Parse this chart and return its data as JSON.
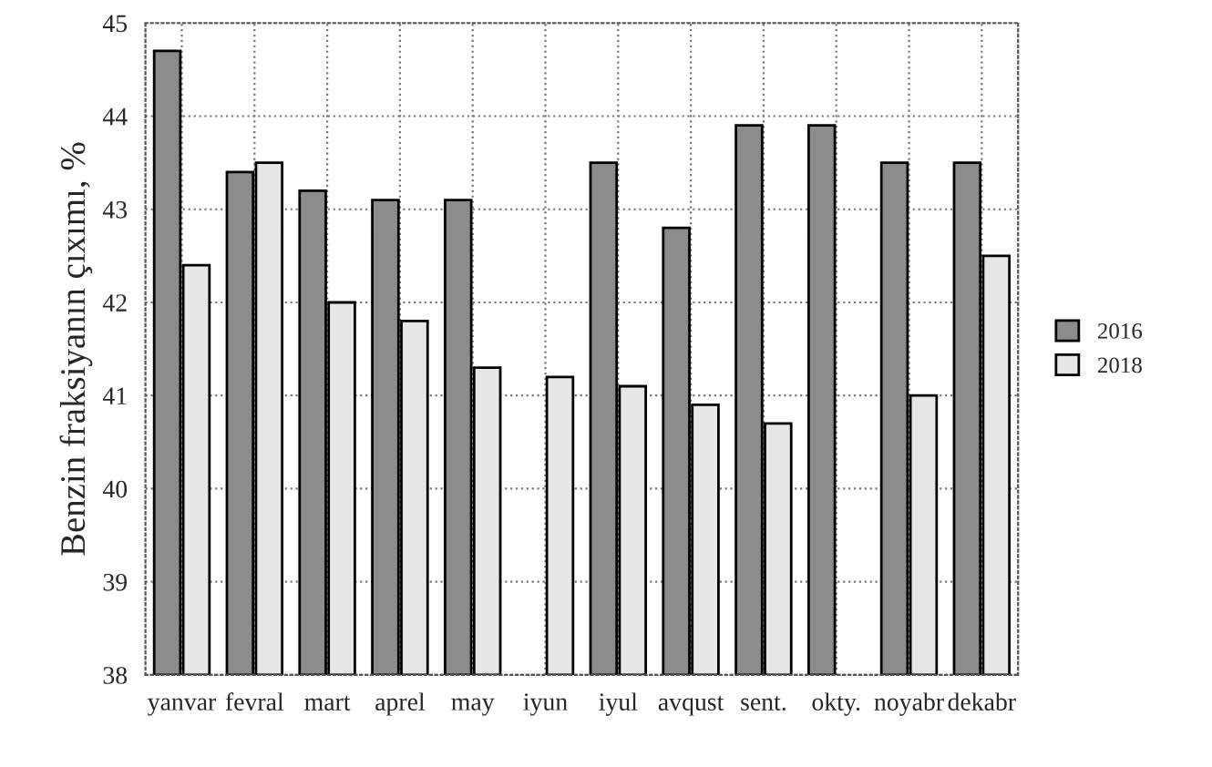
{
  "chart_data": {
    "type": "bar",
    "ylabel": "Benzin fraksiyanın çıxımı, %",
    "categories": [
      "yanvar",
      "fevral",
      "mart",
      "aprel",
      "may",
      "iyun",
      "iyul",
      "avqust",
      "sent.",
      "okty.",
      "noyabr",
      "dekabr"
    ],
    "series": [
      {
        "name": "2016",
        "color": "#8c8c8c",
        "values": [
          44.7,
          43.4,
          43.2,
          43.1,
          43.1,
          null,
          43.5,
          42.8,
          43.9,
          43.9,
          43.5,
          43.5
        ]
      },
      {
        "name": "2018",
        "color": "#e6e6e6",
        "values": [
          42.4,
          43.5,
          42.0,
          41.8,
          41.3,
          41.2,
          41.1,
          40.9,
          40.7,
          null,
          41.0,
          42.5
        ]
      }
    ],
    "ylim": [
      38,
      45
    ],
    "yticks": [
      38,
      39,
      40,
      41,
      42,
      43,
      44,
      45
    ],
    "grid": true,
    "legend": "right"
  }
}
